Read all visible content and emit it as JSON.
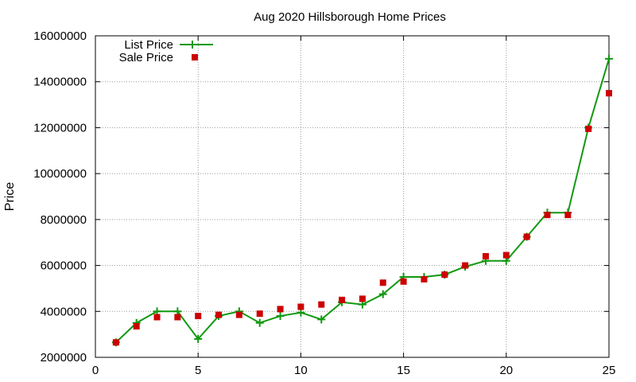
{
  "chart_data": {
    "type": "scatter",
    "title": "Aug 2020 Hillsborough Home Prices",
    "xlabel": "",
    "ylabel": "Price",
    "xlim": [
      0,
      25
    ],
    "ylim": [
      2000000,
      16000000
    ],
    "xticks": [
      0,
      5,
      10,
      15,
      20,
      25
    ],
    "yticks": [
      2000000,
      4000000,
      6000000,
      8000000,
      10000000,
      12000000,
      14000000,
      16000000
    ],
    "grid": true,
    "legend_position": "top-left",
    "series": [
      {
        "name": "List Price",
        "style": "linespoints",
        "color": "#119911",
        "x": [
          1,
          2,
          3,
          4,
          5,
          6,
          7,
          8,
          9,
          10,
          11,
          12,
          13,
          14,
          15,
          16,
          17,
          18,
          19,
          20,
          21,
          22,
          23,
          24,
          25
        ],
        "y": [
          2650000,
          3500000,
          4000000,
          4000000,
          2800000,
          3800000,
          4000000,
          3500000,
          3800000,
          3950000,
          3650000,
          4400000,
          4300000,
          4750000,
          5500000,
          5500000,
          5600000,
          5950000,
          6200000,
          6200000,
          7250000,
          8300000,
          8300000,
          12000000,
          15000000
        ]
      },
      {
        "name": "Sale Price",
        "style": "points",
        "color": "#cc0000",
        "x": [
          1,
          2,
          3,
          4,
          5,
          6,
          7,
          8,
          9,
          10,
          11,
          12,
          13,
          14,
          15,
          16,
          17,
          18,
          19,
          20,
          21,
          22,
          23,
          24,
          25
        ],
        "y": [
          2650000,
          3350000,
          3750000,
          3750000,
          3800000,
          3850000,
          3850000,
          3900000,
          4100000,
          4200000,
          4300000,
          4500000,
          4550000,
          5250000,
          5300000,
          5400000,
          5600000,
          6000000,
          6400000,
          6450000,
          7250000,
          8200000,
          8200000,
          11950000,
          13500000
        ]
      }
    ]
  }
}
